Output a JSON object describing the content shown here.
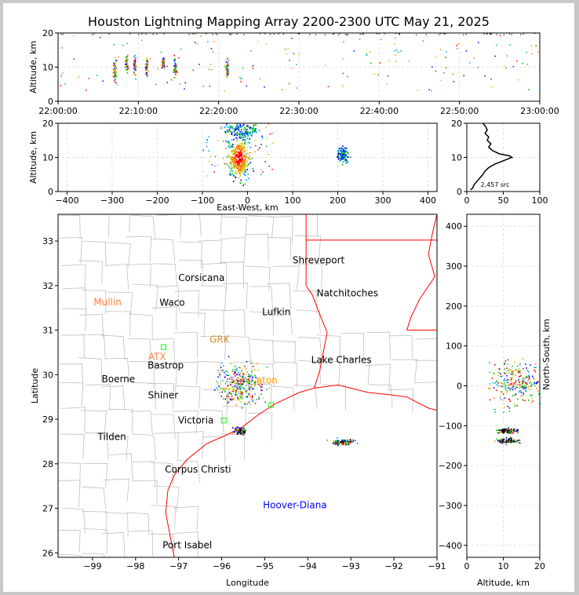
{
  "title": "Houston Lightning Mapping Array 2200-2300 UTC May 21, 2025",
  "colors": {
    "time_scale": [
      "#0000ff",
      "#00a0ff",
      "#00c800",
      "#c8c800",
      "#ff8000",
      "#ff0000"
    ],
    "state_border": "#ff0000",
    "coast": "#ff0000",
    "county": "#c0c0c0",
    "station": "#00ff00"
  },
  "chart_data": [
    {
      "id": "time_height",
      "type": "scatter",
      "xlabel": "",
      "ylabel": "Altitude, km",
      "xlim": [
        "22:00:00",
        "23:00:00"
      ],
      "ylim": [
        0,
        20
      ],
      "xticks": [
        "22:00:00",
        "22:10:00",
        "22:20:00",
        "22:30:00",
        "22:40:00",
        "22:50:00",
        "23:00:00"
      ],
      "yticks": [
        "0",
        "10",
        "20"
      ],
      "clusters": [
        {
          "t_min": 7.0,
          "alt_km": 9,
          "spread": 2
        },
        {
          "t_min": 8.5,
          "alt_km": 11,
          "spread": 1.5
        },
        {
          "t_min": 9.5,
          "alt_km": 10.5,
          "spread": 2
        },
        {
          "t_min": 11.0,
          "alt_km": 9.5,
          "spread": 2
        },
        {
          "t_min": 13.0,
          "alt_km": 11,
          "spread": 1
        },
        {
          "t_min": 14.5,
          "alt_km": 10,
          "spread": 2
        },
        {
          "t_min": 21.0,
          "alt_km": 9.5,
          "spread": 2
        }
      ]
    },
    {
      "id": "ew_height",
      "type": "scatter",
      "xlabel": "East-West, km",
      "ylabel": "Altitude, km",
      "xlim": [
        -420,
        420
      ],
      "ylim": [
        0,
        20
      ],
      "xticks": [
        "−400",
        "−300",
        "−200",
        "−100",
        "0",
        "100",
        "200",
        "300",
        "400"
      ],
      "yticks": [
        "0",
        "10",
        "20"
      ],
      "clusters": [
        {
          "x_km": -20,
          "alt_km": 10,
          "sx": 15,
          "sy": 4
        },
        {
          "x_km": -15,
          "alt_km": 18,
          "sx": 25,
          "sy": 2
        },
        {
          "x_km": 210,
          "alt_km": 11,
          "sx": 8,
          "sy": 1.5
        }
      ]
    },
    {
      "id": "alt_histogram",
      "type": "line",
      "xlim": [
        0,
        100
      ],
      "ylim": [
        0,
        20
      ],
      "xticks": [
        "0",
        "50",
        "100"
      ],
      "yticks": [
        "0",
        "10",
        "20"
      ],
      "annotation": "2,457 src",
      "profile": [
        [
          0.5,
          5
        ],
        [
          1,
          8
        ],
        [
          2,
          10
        ],
        [
          3,
          14
        ],
        [
          4,
          18
        ],
        [
          5,
          22
        ],
        [
          6,
          25
        ],
        [
          7,
          30
        ],
        [
          8,
          38
        ],
        [
          9,
          50
        ],
        [
          10,
          62
        ],
        [
          10.5,
          58
        ],
        [
          11,
          45
        ],
        [
          12,
          35
        ],
        [
          13,
          30
        ],
        [
          14,
          33
        ],
        [
          15,
          28
        ],
        [
          16,
          30
        ],
        [
          17,
          25
        ],
        [
          18,
          28
        ],
        [
          19,
          26
        ],
        [
          20,
          22
        ]
      ]
    },
    {
      "id": "plan_view",
      "type": "scatter",
      "xlabel": "Longitude",
      "ylabel": "Latitude",
      "xlim": [
        -99.8,
        -91
      ],
      "ylim": [
        25.9,
        33.6
      ],
      "xticks": [
        "−99",
        "−98",
        "−97",
        "−96",
        "−95",
        "−94",
        "−93",
        "−92",
        "−91"
      ],
      "yticks": [
        "26",
        "27",
        "28",
        "29",
        "30",
        "31",
        "32",
        "33"
      ],
      "clusters": [
        {
          "lon": -95.6,
          "lat": 29.8,
          "slon": 0.35,
          "slat": 0.3
        },
        {
          "lon": -95.6,
          "lat": 28.75,
          "slon": 0.1,
          "slat": 0.05
        },
        {
          "lon": -93.2,
          "lat": 28.5,
          "slon": 0.2,
          "slat": 0.05
        }
      ]
    },
    {
      "id": "ns_height",
      "type": "scatter",
      "xlabel": "Altitude, km",
      "ylabel": "North-South, km",
      "xlim": [
        0,
        20
      ],
      "ylim": [
        -430,
        430
      ],
      "xticks": [
        "0",
        "10",
        "20"
      ],
      "yticks": [
        "−400",
        "−300",
        "−200",
        "−100",
        "0",
        "100",
        "200",
        "300",
        "400"
      ],
      "clusters": [
        {
          "alt_km": 14,
          "y_km": 10,
          "sx": 5,
          "sy": 40
        },
        {
          "alt_km": 11,
          "y_km": -112,
          "sx": 2,
          "sy": 4
        },
        {
          "alt_km": 11,
          "y_km": -137,
          "sx": 2,
          "sy": 4
        }
      ]
    }
  ],
  "cities": [
    {
      "name": "Shreveport",
      "lon": -93.75,
      "lat": 32.5,
      "color": "#000000"
    },
    {
      "name": "Corsicana",
      "lon": -96.47,
      "lat": 32.1,
      "color": "#000000"
    },
    {
      "name": "Natchitoches",
      "lon": -93.08,
      "lat": 31.76,
      "color": "#000000"
    },
    {
      "name": "Mullin",
      "lon": -98.65,
      "lat": 31.56,
      "color": "#ff8040"
    },
    {
      "name": "Waco",
      "lon": -97.15,
      "lat": 31.55,
      "color": "#000000"
    },
    {
      "name": "Lufkin",
      "lon": -94.73,
      "lat": 31.34,
      "color": "#000000"
    },
    {
      "name": "GRK",
      "lon": -96.05,
      "lat": 30.72,
      "color": "#d09030"
    },
    {
      "name": "ATX",
      "lon": -97.5,
      "lat": 30.33,
      "color": "#ff8040"
    },
    {
      "name": "Bastrop",
      "lon": -97.3,
      "lat": 30.14,
      "color": "#000000"
    },
    {
      "name": "Lake Charles",
      "lon": -93.22,
      "lat": 30.26,
      "color": "#000000"
    },
    {
      "name": "Boerne",
      "lon": -98.4,
      "lat": 29.83,
      "color": "#000000"
    },
    {
      "name": "aton",
      "lon": -94.95,
      "lat": 29.8,
      "color": "#ffa000"
    },
    {
      "name": "Shiner",
      "lon": -97.36,
      "lat": 29.47,
      "color": "#000000"
    },
    {
      "name": "Victoria",
      "lon": -96.6,
      "lat": 28.9,
      "color": "#000000"
    },
    {
      "name": "Tilden",
      "lon": -98.55,
      "lat": 28.53,
      "color": "#000000"
    },
    {
      "name": "Corpus Christi",
      "lon": -96.55,
      "lat": 27.8,
      "color": "#000000"
    },
    {
      "name": "Hoover-Diana",
      "lon": -94.3,
      "lat": 27.0,
      "color": "#0000ff"
    },
    {
      "name": "Port Isabel",
      "lon": -96.8,
      "lat": 26.1,
      "color": "#000000"
    }
  ],
  "stations": [
    {
      "lon": -97.35,
      "lat": 30.62
    },
    {
      "lon": -94.85,
      "lat": 29.32
    },
    {
      "lon": -95.95,
      "lat": 28.97
    }
  ],
  "coast": [
    [
      -97.1,
      25.9
    ],
    [
      -97.2,
      26.4
    ],
    [
      -97.3,
      26.9
    ],
    [
      -97.25,
      27.4
    ],
    [
      -97.1,
      27.75
    ],
    [
      -96.8,
      28.1
    ],
    [
      -96.35,
      28.45
    ],
    [
      -95.95,
      28.62
    ],
    [
      -95.55,
      28.8
    ],
    [
      -95.15,
      29.1
    ],
    [
      -94.75,
      29.35
    ],
    [
      -94.2,
      29.6
    ],
    [
      -93.85,
      29.7
    ],
    [
      -93.3,
      29.77
    ],
    [
      -92.6,
      29.6
    ],
    [
      -92.1,
      29.55
    ],
    [
      -91.7,
      29.5
    ],
    [
      -91.2,
      29.25
    ],
    [
      -91.0,
      29.2
    ]
  ],
  "state_lines": [
    [
      [
        -94.04,
        33.6
      ],
      [
        -94.04,
        31.99
      ],
      [
        -93.9,
        31.8
      ],
      [
        -93.7,
        31.3
      ],
      [
        -93.55,
        30.95
      ],
      [
        -93.72,
        30.1
      ],
      [
        -93.85,
        29.7
      ]
    ],
    [
      [
        -94.04,
        33.02
      ],
      [
        -91.0,
        33.02
      ]
    ],
    [
      [
        -91.7,
        31.0
      ],
      [
        -91.0,
        31.0
      ]
    ],
    [
      [
        -91.0,
        33.6
      ],
      [
        -91.1,
        33.2
      ],
      [
        -91.2,
        32.7
      ],
      [
        -91.05,
        32.2
      ],
      [
        -91.4,
        31.7
      ],
      [
        -91.6,
        31.3
      ],
      [
        -91.7,
        31.0
      ]
    ]
  ]
}
